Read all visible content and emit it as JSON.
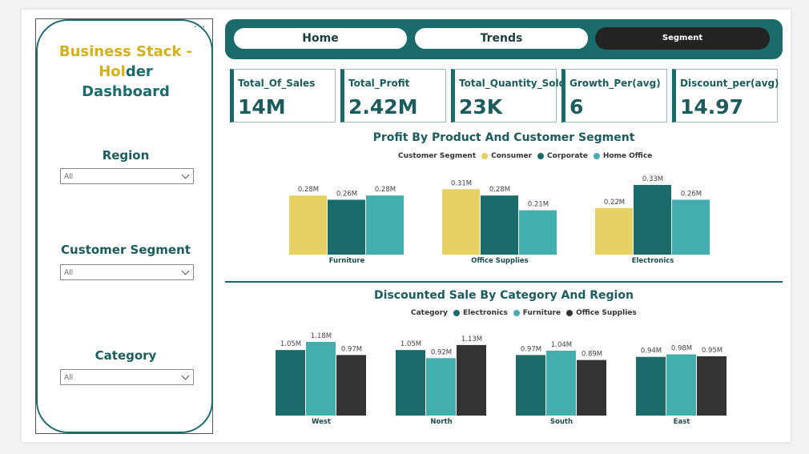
{
  "sidebar": {
    "title_part1": "Business Stack -",
    "title_part2_yellow": "Hol",
    "title_part2_teal": "der Dashboard",
    "slicers": [
      {
        "label": "Region",
        "value": "All"
      },
      {
        "label": "Customer Segment",
        "value": "All"
      },
      {
        "label": "Category",
        "value": "All"
      }
    ],
    "more_icon": "ellipsis-icon"
  },
  "nav": {
    "home": "Home",
    "trends": "Trends",
    "segment": "Segment"
  },
  "kpis": [
    {
      "label": "Total_Of_Sales",
      "value": "14M"
    },
    {
      "label": "Total_Profit",
      "value": "2.42M"
    },
    {
      "label": "Total_Quantity_Sold",
      "value": "23K"
    },
    {
      "label": "Growth_Per(avg)",
      "value": "6"
    },
    {
      "label": "Discount_per(avg)",
      "value": "14.97"
    }
  ],
  "colors": {
    "teal_dark": "#1c6b6b",
    "teal_light": "#44adad",
    "yellow": "#e8d163",
    "charcoal": "#333333"
  },
  "chart_data": [
    {
      "type": "bar",
      "title": "Profit By Product And Customer Segment",
      "legend_title": "Customer Segment",
      "categories": [
        "Furniture",
        "Office Supplies",
        "Electronics"
      ],
      "series": [
        {
          "name": "Consumer",
          "color": "#e8d163",
          "values": [
            0.28,
            0.31,
            0.22
          ],
          "labels": [
            "0.28M",
            "0.31M",
            "0.22M"
          ]
        },
        {
          "name": "Corporate",
          "color": "#1c6b6b",
          "values": [
            0.26,
            0.28,
            0.33
          ],
          "labels": [
            "0.26M",
            "0.28M",
            "0.33M"
          ]
        },
        {
          "name": "Home Office",
          "color": "#44adad",
          "values": [
            0.28,
            0.21,
            0.26
          ],
          "labels": [
            "0.28M",
            "0.21M",
            "0.26M"
          ]
        }
      ],
      "ylim": [
        0,
        0.33
      ],
      "grid": false,
      "legend_position": "top"
    },
    {
      "type": "bar",
      "title": "Discounted Sale By Category And Region",
      "legend_title": "Category",
      "categories": [
        "West",
        "North",
        "South",
        "East"
      ],
      "series": [
        {
          "name": "Electronics",
          "color": "#1c6b6b",
          "values": [
            1.05,
            1.05,
            0.97,
            0.94
          ],
          "labels": [
            "1.05M",
            "1.05M",
            "0.97M",
            "0.94M"
          ]
        },
        {
          "name": "Furniture",
          "color": "#44adad",
          "values": [
            1.18,
            0.92,
            1.04,
            0.98
          ],
          "labels": [
            "1.18M",
            "0.92M",
            "1.04M",
            "0.98M"
          ]
        },
        {
          "name": "Office Supplies",
          "color": "#333333",
          "values": [
            0.97,
            1.13,
            0.89,
            0.95
          ],
          "labels": [
            "0.97M",
            "1.13M",
            "0.89M",
            "0.95M"
          ]
        }
      ],
      "ylim": [
        0,
        1.18
      ],
      "grid": false,
      "legend_position": "top"
    }
  ]
}
